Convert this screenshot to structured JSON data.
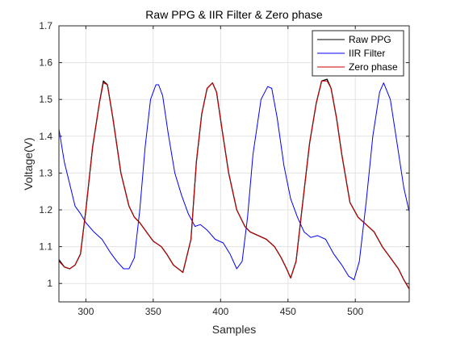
{
  "chart_data": {
    "type": "line",
    "title": "Raw PPG & IIR Filter & Zero phase",
    "xlabel": "Samples",
    "ylabel": "Voltage(V)",
    "xlim": [
      280,
      540
    ],
    "ylim": [
      0.95,
      1.7
    ],
    "xticks": [
      300,
      350,
      400,
      450,
      500
    ],
    "yticks": [
      1,
      1.1,
      1.2,
      1.3,
      1.4,
      1.5,
      1.6,
      1.7
    ],
    "grid": true,
    "legend_position": "top-right",
    "series": [
      {
        "name": "Raw PPG",
        "color": "#000000",
        "x": [
          280,
          284,
          288,
          292,
          296,
          300,
          305,
          310,
          313,
          316,
          320,
          326,
          332,
          336,
          340,
          345,
          350,
          352,
          356,
          360,
          365,
          372,
          378,
          382,
          386,
          390,
          394,
          397,
          401,
          406,
          412,
          418,
          422,
          428,
          434,
          440,
          445,
          449,
          452,
          456,
          460,
          466,
          471,
          475,
          479,
          482,
          486,
          490,
          496,
          502,
          508,
          514,
          520,
          526,
          532,
          536,
          540
        ],
        "y": [
          1.065,
          1.045,
          1.04,
          1.05,
          1.08,
          1.2,
          1.37,
          1.49,
          1.55,
          1.54,
          1.45,
          1.3,
          1.21,
          1.18,
          1.165,
          1.14,
          1.115,
          1.11,
          1.1,
          1.08,
          1.05,
          1.03,
          1.12,
          1.33,
          1.46,
          1.53,
          1.545,
          1.52,
          1.42,
          1.3,
          1.2,
          1.155,
          1.14,
          1.13,
          1.12,
          1.1,
          1.07,
          1.04,
          1.015,
          1.06,
          1.19,
          1.38,
          1.49,
          1.55,
          1.555,
          1.53,
          1.45,
          1.35,
          1.22,
          1.18,
          1.16,
          1.14,
          1.1,
          1.07,
          1.04,
          1.01,
          0.985
        ]
      },
      {
        "name": "IIR Filter",
        "color": "#0000ff",
        "x": [
          280,
          284,
          288,
          292,
          296,
          300,
          306,
          312,
          318,
          323,
          328,
          332,
          336,
          340,
          344,
          348,
          352,
          354,
          357,
          361,
          366,
          371,
          376,
          381,
          385,
          390,
          396,
          402,
          407,
          412,
          416,
          420,
          424,
          430,
          435,
          438,
          442,
          447,
          452,
          457,
          462,
          467,
          472,
          478,
          484,
          490,
          495,
          499,
          503,
          508,
          513,
          518,
          521,
          526,
          531,
          536,
          540
        ],
        "y": [
          1.42,
          1.33,
          1.27,
          1.21,
          1.19,
          1.165,
          1.14,
          1.12,
          1.085,
          1.06,
          1.04,
          1.04,
          1.07,
          1.2,
          1.37,
          1.5,
          1.54,
          1.54,
          1.51,
          1.41,
          1.3,
          1.24,
          1.19,
          1.155,
          1.16,
          1.145,
          1.12,
          1.11,
          1.08,
          1.04,
          1.06,
          1.18,
          1.35,
          1.5,
          1.535,
          1.53,
          1.45,
          1.32,
          1.23,
          1.18,
          1.14,
          1.125,
          1.13,
          1.12,
          1.08,
          1.05,
          1.02,
          1.01,
          1.06,
          1.22,
          1.4,
          1.52,
          1.545,
          1.5,
          1.38,
          1.26,
          1.195
        ]
      },
      {
        "name": "Zero phase",
        "color": "#cc0000",
        "x": [
          280,
          284,
          288,
          292,
          296,
          300,
          305,
          310,
          313,
          316,
          320,
          326,
          332,
          336,
          340,
          345,
          350,
          352,
          356,
          360,
          365,
          372,
          378,
          382,
          386,
          390,
          394,
          397,
          401,
          406,
          412,
          418,
          422,
          428,
          434,
          440,
          445,
          449,
          452,
          456,
          460,
          466,
          471,
          475,
          479,
          482,
          486,
          490,
          496,
          502,
          508,
          514,
          520,
          526,
          532,
          536,
          540
        ],
        "y": [
          1.06,
          1.045,
          1.04,
          1.05,
          1.08,
          1.2,
          1.37,
          1.49,
          1.545,
          1.54,
          1.45,
          1.3,
          1.21,
          1.18,
          1.165,
          1.14,
          1.115,
          1.11,
          1.1,
          1.08,
          1.05,
          1.03,
          1.12,
          1.33,
          1.46,
          1.53,
          1.545,
          1.52,
          1.42,
          1.3,
          1.2,
          1.155,
          1.14,
          1.13,
          1.12,
          1.1,
          1.07,
          1.04,
          1.015,
          1.06,
          1.19,
          1.38,
          1.49,
          1.55,
          1.55,
          1.53,
          1.45,
          1.35,
          1.22,
          1.18,
          1.16,
          1.14,
          1.1,
          1.07,
          1.04,
          1.01,
          0.985
        ]
      }
    ]
  }
}
